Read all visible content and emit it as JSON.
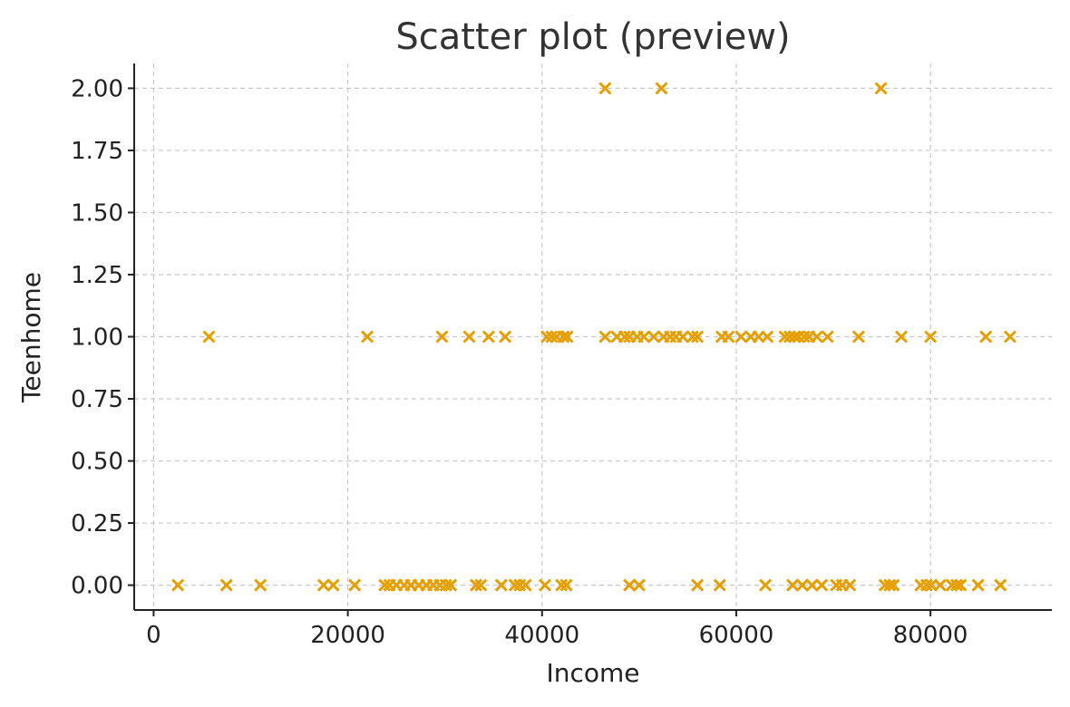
{
  "chart_data": {
    "type": "scatter",
    "title": "Scatter plot (preview)",
    "xlabel": "Income",
    "ylabel": "Teenhome",
    "xlim": [
      -2000,
      92500
    ],
    "ylim": [
      -0.1,
      2.1
    ],
    "xticks": [
      0,
      20000,
      40000,
      60000,
      80000
    ],
    "xtick_labels": [
      "0",
      "20000",
      "40000",
      "60000",
      "80000"
    ],
    "yticks": [
      0,
      0.25,
      0.5,
      0.75,
      1.0,
      1.25,
      1.5,
      1.75,
      2.0
    ],
    "ytick_labels": [
      "0.00",
      "0.25",
      "0.50",
      "0.75",
      "1.00",
      "1.25",
      "1.50",
      "1.75",
      "2.00"
    ],
    "grid": true,
    "marker": "x",
    "color": "#E69F00",
    "points": [
      [
        46500,
        2
      ],
      [
        52300,
        2
      ],
      [
        74900,
        2
      ],
      [
        5700,
        1
      ],
      [
        22000,
        1
      ],
      [
        29700,
        1
      ],
      [
        32500,
        1
      ],
      [
        34500,
        1
      ],
      [
        36200,
        1
      ],
      [
        40500,
        1
      ],
      [
        41000,
        1
      ],
      [
        41500,
        1
      ],
      [
        42200,
        1
      ],
      [
        42600,
        1
      ],
      [
        46500,
        1
      ],
      [
        47700,
        1
      ],
      [
        48500,
        1
      ],
      [
        49000,
        1
      ],
      [
        49800,
        1
      ],
      [
        50500,
        1
      ],
      [
        51500,
        1
      ],
      [
        52500,
        1
      ],
      [
        53200,
        1
      ],
      [
        53800,
        1
      ],
      [
        54500,
        1
      ],
      [
        55500,
        1
      ],
      [
        56000,
        1
      ],
      [
        58500,
        1
      ],
      [
        59200,
        1
      ],
      [
        60500,
        1
      ],
      [
        61500,
        1
      ],
      [
        62300,
        1
      ],
      [
        63200,
        1
      ],
      [
        65000,
        1
      ],
      [
        65500,
        1
      ],
      [
        66000,
        1
      ],
      [
        66400,
        1
      ],
      [
        67000,
        1
      ],
      [
        67500,
        1
      ],
      [
        68300,
        1
      ],
      [
        69400,
        1
      ],
      [
        72600,
        1
      ],
      [
        77000,
        1
      ],
      [
        80000,
        1
      ],
      [
        85700,
        1
      ],
      [
        88200,
        1
      ],
      [
        2500,
        0
      ],
      [
        7500,
        0
      ],
      [
        11000,
        0
      ],
      [
        17500,
        0
      ],
      [
        18500,
        0
      ],
      [
        20700,
        0
      ],
      [
        23800,
        0
      ],
      [
        24300,
        0
      ],
      [
        25000,
        0
      ],
      [
        25800,
        0
      ],
      [
        26500,
        0
      ],
      [
        27300,
        0
      ],
      [
        28100,
        0
      ],
      [
        28800,
        0
      ],
      [
        29500,
        0
      ],
      [
        30100,
        0
      ],
      [
        30600,
        0
      ],
      [
        33200,
        0
      ],
      [
        33700,
        0
      ],
      [
        35800,
        0
      ],
      [
        37200,
        0
      ],
      [
        37700,
        0
      ],
      [
        38300,
        0
      ],
      [
        40300,
        0
      ],
      [
        42000,
        0
      ],
      [
        42500,
        0
      ],
      [
        49000,
        0
      ],
      [
        50000,
        0
      ],
      [
        56000,
        0
      ],
      [
        58300,
        0
      ],
      [
        63000,
        0
      ],
      [
        65800,
        0
      ],
      [
        66800,
        0
      ],
      [
        67800,
        0
      ],
      [
        68800,
        0
      ],
      [
        70300,
        0
      ],
      [
        70900,
        0
      ],
      [
        71700,
        0
      ],
      [
        75300,
        0
      ],
      [
        75800,
        0
      ],
      [
        76200,
        0
      ],
      [
        79000,
        0
      ],
      [
        79600,
        0
      ],
      [
        80100,
        0
      ],
      [
        81000,
        0
      ],
      [
        82200,
        0
      ],
      [
        82700,
        0
      ],
      [
        83100,
        0
      ],
      [
        84900,
        0
      ],
      [
        87200,
        0
      ]
    ]
  }
}
